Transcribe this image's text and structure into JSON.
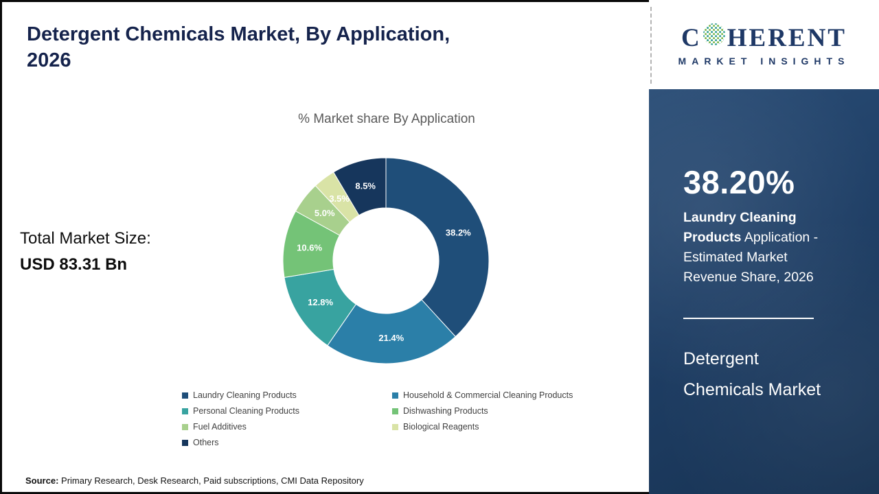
{
  "header": {
    "title_line1": "Detergent Chemicals Market, By Application,",
    "title_line2": "2026"
  },
  "market_size": {
    "label": "Total Market Size:",
    "value": "USD 83.31 Bn"
  },
  "chart_data": {
    "type": "pie",
    "donut": true,
    "title": "% Market share By Application",
    "start_angle_deg": 0,
    "direction": "clockwise",
    "legend_position": "bottom",
    "segments": [
      {
        "label": "Laundry Cleaning Products",
        "value": 38.2,
        "display": "38.2%",
        "color": "#1f4e79"
      },
      {
        "label": "Household & Commercial Cleaning Products",
        "value": 21.4,
        "display": "21.4%",
        "color": "#2b7fa8"
      },
      {
        "label": "Personal Cleaning Products",
        "value": 12.8,
        "display": "12.8%",
        "color": "#38a3a0"
      },
      {
        "label": "Dishwashing Products",
        "value": 10.6,
        "display": "10.6%",
        "color": "#74c377"
      },
      {
        "label": "Fuel Additives",
        "value": 5.0,
        "display": "5.0%",
        "color": "#a8d08d"
      },
      {
        "label": "Biological Reagents",
        "value": 3.5,
        "display": "3.5%",
        "color": "#d9e3a6"
      },
      {
        "label": "Others",
        "value": 8.5,
        "display": "8.5%",
        "color": "#16365c"
      }
    ]
  },
  "source": {
    "label": "Source:",
    "text": " Primary Research, Desk Research, Paid subscriptions, CMI Data Repository"
  },
  "sidebar": {
    "logo": {
      "brand_first": "C",
      "brand_rest": "HERENT",
      "globe_icon": "dotted-globe-icon",
      "subtitle": "MARKET INSIGHTS"
    },
    "highlight": {
      "value": "38.20%",
      "bold_text": "Laundry Cleaning Products",
      "rest_text": " Application - Estimated Market Revenue Share, 2026"
    },
    "footer_title": "Detergent Chemicals Market",
    "accent_color": "#1f3f66"
  }
}
